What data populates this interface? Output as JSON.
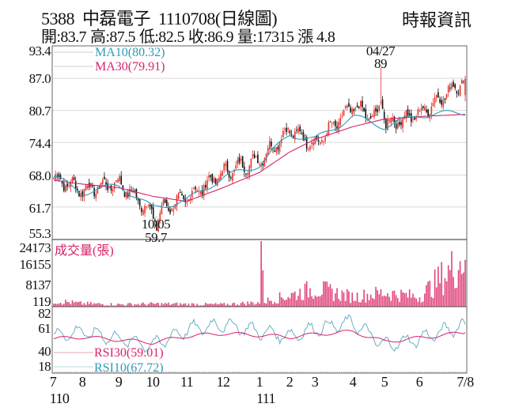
{
  "header": {
    "code": "5388",
    "name": "中磊電子",
    "date_type": "1110708(日線圖)",
    "source": "時報資訊"
  },
  "ohlc": {
    "open": "開:83.7",
    "high": "高:87.5",
    "low": "低:82.5",
    "close": "收:86.9",
    "volume": "量:17315",
    "change": "漲 4.8"
  },
  "colors": {
    "up": "#e8322b",
    "down": "#111111",
    "ma10": "#2e9bb5",
    "ma30": "#d8226a",
    "volume": "#e0447c",
    "rsi10": "#6aaec4",
    "rsi30": "#d8226a",
    "grid": "#d9d9d9",
    "frame": "#555555"
  },
  "chart_data": [
    {
      "type": "candlestick",
      "title": "5388 中磊電子 1110708(日線圖)",
      "pane": "price",
      "y_ticks": [
        93.4,
        87.0,
        80.7,
        74.4,
        68.0,
        61.7,
        55.3
      ],
      "ylim": [
        55.3,
        93.4
      ],
      "x_ticks": [
        "7",
        "8",
        "9",
        "10",
        "11",
        "12",
        "1",
        "2",
        "3",
        "4",
        "5",
        "6",
        "7/8"
      ],
      "x_year_labels": [
        {
          "label": "110",
          "at": "7"
        },
        {
          "label": "111",
          "at": "1"
        }
      ],
      "legend": [
        {
          "name": "MA10",
          "value": "MA10(80.32)"
        },
        {
          "name": "MA30",
          "value": "MA30(79.91)"
        }
      ],
      "annotations": [
        {
          "date": "10/05",
          "value": "59.7",
          "type": "low"
        },
        {
          "date": "04/27",
          "value": "89",
          "type": "high"
        }
      ],
      "series_close_approx": {
        "x": [
          "7",
          "8",
          "9",
          "10",
          "11",
          "12",
          "1",
          "2",
          "3",
          "4",
          "5",
          "6",
          "7/8"
        ],
        "close": [
          67.5,
          65.0,
          66.5,
          60.5,
          63.5,
          68.5,
          71.0,
          77.0,
          74.0,
          81.5,
          78.0,
          80.0,
          86.9
        ],
        "ma10": [
          67.8,
          64.5,
          66.0,
          61.5,
          63.0,
          67.5,
          70.0,
          76.0,
          75.0,
          79.5,
          77.5,
          79.8,
          80.32
        ],
        "ma30": [
          67.0,
          66.2,
          65.5,
          63.8,
          62.8,
          65.5,
          68.5,
          72.5,
          75.0,
          77.5,
          79.0,
          79.5,
          79.91
        ]
      },
      "last": {
        "open": 83.7,
        "high": 87.5,
        "low": 82.5,
        "close": 86.9,
        "change": 4.8
      }
    },
    {
      "type": "bar",
      "pane": "volume",
      "title": "成交量(張)",
      "y_ticks": [
        24173,
        16155,
        8137,
        119
      ],
      "ylim": [
        119,
        24173
      ],
      "x_ticks": [
        "7",
        "8",
        "9",
        "10",
        "11",
        "12",
        "1",
        "2",
        "3",
        "4",
        "5",
        "6",
        "7/8"
      ],
      "values_approx": [
        2200,
        1200,
        900,
        1100,
        1000,
        900,
        1600,
        4000,
        6500,
        3500,
        5000,
        3500,
        17315
      ],
      "max_annotation": "24173 near Jan 111"
    },
    {
      "type": "line",
      "pane": "rsi",
      "y_ticks": [
        82,
        61,
        40,
        18
      ],
      "ylim": [
        18,
        82
      ],
      "legend": [
        {
          "name": "RSI30",
          "value": "RSI30(59.01)"
        },
        {
          "name": "RSI10",
          "value": "RSI10(67.72)"
        }
      ],
      "series": [
        {
          "name": "RSI10",
          "values": [
            55,
            60,
            52,
            45,
            62,
            68,
            60,
            55,
            63,
            70,
            45,
            52,
            67.72
          ]
        },
        {
          "name": "RSI30",
          "values": [
            52,
            54,
            51,
            48,
            55,
            58,
            56,
            54,
            57,
            60,
            49,
            53,
            59.01
          ]
        }
      ],
      "x_ticks": [
        "7",
        "8",
        "9",
        "10",
        "11",
        "12",
        "1",
        "2",
        "3",
        "4",
        "5",
        "6",
        "7/8"
      ]
    }
  ],
  "labels": {
    "price_ticks": [
      "93.4",
      "87.0",
      "80.7",
      "74.4",
      "68.0",
      "61.7",
      "55.3"
    ],
    "volume_ticks": [
      "24173",
      "16155",
      "8137",
      "119"
    ],
    "rsi_ticks": [
      "82",
      "61",
      "40",
      "18"
    ],
    "months": [
      "7",
      "8",
      "9",
      "10",
      "11",
      "12",
      "1",
      "2",
      "3",
      "4",
      "5",
      "6",
      "7/8"
    ],
    "years": [
      "110",
      "111"
    ],
    "ma10": "MA10(80.32)",
    "ma30": "MA30(79.91)",
    "volume_title": "成交量(張)",
    "rsi30": "RSI30(59.01)",
    "rsi10": "RSI10(67.72)",
    "low_date": "10/05",
    "low_value": "59.7",
    "high_date": "04/27",
    "high_value": "89"
  }
}
